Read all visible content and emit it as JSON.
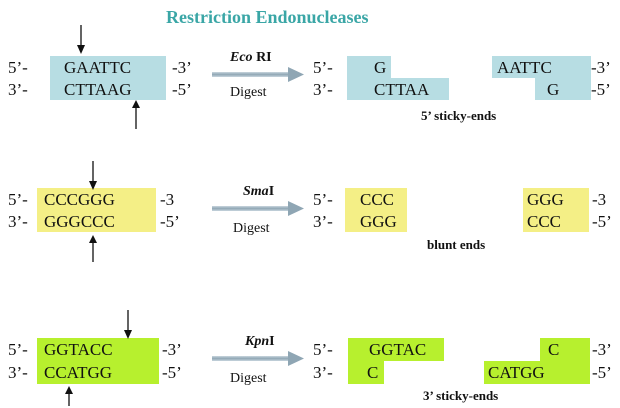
{
  "title": "Restriction Endonucleases",
  "colors": {
    "title": "#3aa6a6",
    "ecori_box": "#b7dde3",
    "smai_box": "#f4ef86",
    "kpni_box": "#b7f02e",
    "arrow_gray": "#8fa6b4"
  },
  "rows": [
    {
      "enzyme_italic": "Eco",
      "enzyme_rest": " RI",
      "action": "Digest",
      "top_prefix": "5’-",
      "top_seq": "GAATTC",
      "top_suffix": "-3’",
      "bottom_prefix": "3’-",
      "bottom_seq": "CTTAAG",
      "bottom_suffix": "-5’",
      "left_top": "G",
      "left_bottom": "CTTAA",
      "right_top": "AATTC",
      "right_bottom": "G",
      "prod_left_top_prefix": "5’-",
      "prod_left_bottom_prefix": "3’-",
      "prod_right_top_suffix": "-3’",
      "prod_right_bottom_suffix": "-5’",
      "label": "5’ sticky-ends"
    },
    {
      "enzyme_italic": "Sma",
      "enzyme_rest": "I",
      "action": "Digest",
      "top_prefix": "5’-",
      "top_seq": "CCCGGG",
      "top_suffix": "-3",
      "bottom_prefix": "3’-",
      "bottom_seq": "GGGCCC",
      "bottom_suffix": "-5’",
      "left_top": "CCC",
      "left_bottom": "GGG",
      "right_top": "GGG",
      "right_bottom": "CCC",
      "prod_left_top_prefix": "5’-",
      "prod_left_bottom_prefix": "3’-",
      "prod_right_top_suffix": "-3",
      "prod_right_bottom_suffix": "-5’",
      "label": "blunt ends"
    },
    {
      "enzyme_italic": "Kpn",
      "enzyme_rest": "I",
      "action": "Digest",
      "top_prefix": "5’-",
      "top_seq": "GGTACC",
      "top_suffix": "-3’",
      "bottom_prefix": "3’-",
      "bottom_seq": "CCATGG",
      "bottom_suffix": "-5’",
      "left_top": "GGTAC",
      "left_bottom": "C",
      "right_top": "C",
      "right_bottom": "CATGG",
      "prod_left_top_prefix": "5’-",
      "prod_left_bottom_prefix": "3’-",
      "prod_right_top_suffix": "-3’",
      "prod_right_bottom_suffix": "-5’",
      "label": "3’ sticky-ends"
    }
  ]
}
